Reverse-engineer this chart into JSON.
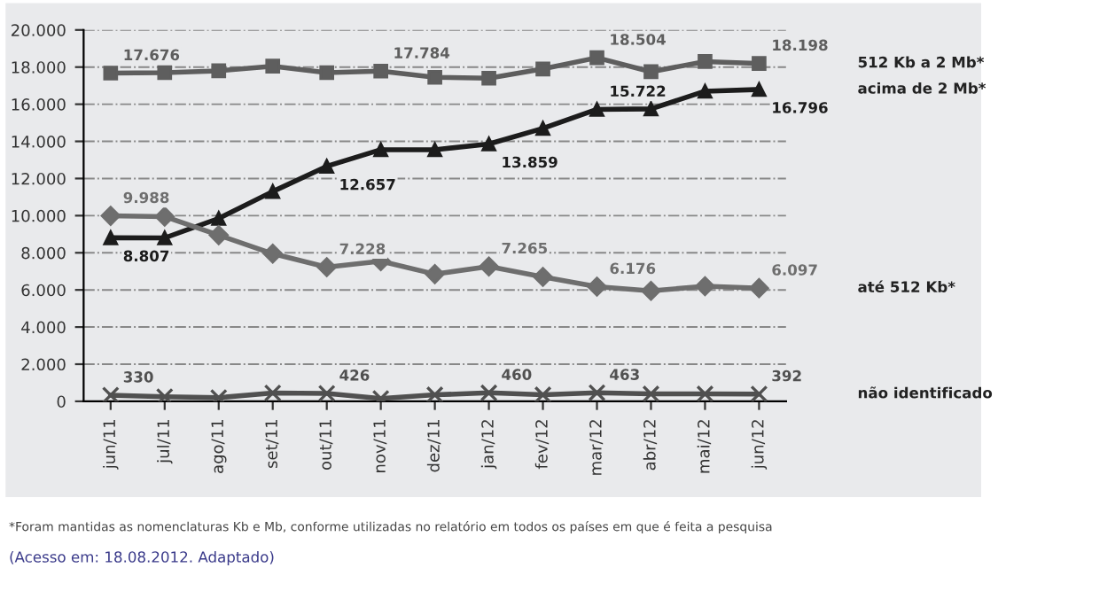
{
  "chart_data": {
    "type": "line",
    "categories": [
      "jun/11",
      "jul/11",
      "ago/11",
      "set/11",
      "out/11",
      "nov/11",
      "dez/11",
      "jan/12",
      "fev/12",
      "mar/12",
      "abr/12",
      "mai/12",
      "jun/12"
    ],
    "series": [
      {
        "name": "512 Kb a 2 Mb*",
        "color": "#5e5e5e",
        "marker": "square",
        "values": [
          17676,
          17700,
          17800,
          18050,
          17700,
          17784,
          17450,
          17400,
          17900,
          18504,
          17750,
          18300,
          18198
        ],
        "value_labels": [
          "17.676",
          null,
          null,
          null,
          null,
          "17.784",
          null,
          null,
          null,
          "18.504",
          null,
          null,
          "18.198"
        ]
      },
      {
        "name": "acima de 2 Mb*",
        "color": "#1c1c1c",
        "marker": "triangle",
        "values": [
          8807,
          8800,
          9850,
          11300,
          12657,
          13550,
          13550,
          13859,
          14700,
          15722,
          15750,
          16700,
          16796
        ],
        "value_labels": [
          "8.807",
          null,
          null,
          null,
          "12.657",
          null,
          null,
          "13.859",
          null,
          "15.722",
          null,
          null,
          "16.796"
        ]
      },
      {
        "name": "até 512 Kb*",
        "color": "#6e6e6e",
        "marker": "diamond",
        "values": [
          9988,
          9950,
          8950,
          7950,
          7228,
          7550,
          6850,
          7265,
          6700,
          6176,
          5950,
          6200,
          6097
        ],
        "value_labels": [
          "9.988",
          null,
          null,
          null,
          "7.228",
          null,
          null,
          "7.265",
          null,
          "6.176",
          null,
          null,
          "6.097"
        ]
      },
      {
        "name": "não identificado",
        "color": "#505050",
        "marker": "cross",
        "values": [
          330,
          250,
          200,
          450,
          426,
          150,
          350,
          460,
          350,
          463,
          400,
          400,
          392
        ],
        "value_labels": [
          "330",
          null,
          null,
          null,
          "426",
          null,
          null,
          "460",
          null,
          "463",
          null,
          null,
          "392"
        ]
      }
    ],
    "ylim": [
      0,
      20000
    ],
    "yticks": [
      {
        "value": 0,
        "label": "0"
      },
      {
        "value": 2000,
        "label": "2.000"
      },
      {
        "value": 4000,
        "label": "4.000"
      },
      {
        "value": 6000,
        "label": "6.000"
      },
      {
        "value": 8000,
        "label": "8.000"
      },
      {
        "value": 10000,
        "label": "10.000"
      },
      {
        "value": 12000,
        "label": "12.000"
      },
      {
        "value": 14000,
        "label": "14.000"
      },
      {
        "value": 16000,
        "label": "16.000"
      },
      {
        "value": 18000,
        "label": "18.000"
      },
      {
        "value": 20000,
        "label": "20.000"
      }
    ],
    "grid": "y",
    "line_style": "solid",
    "legend": false,
    "annotations": [
      "*Foram mantidas as nomenclaturas Kb e Mb, conforme utilizadas no relatório em todos os países em que é feita a pesquisa",
      "(Acesso em: 18.08.2012. Adaptado)"
    ]
  }
}
